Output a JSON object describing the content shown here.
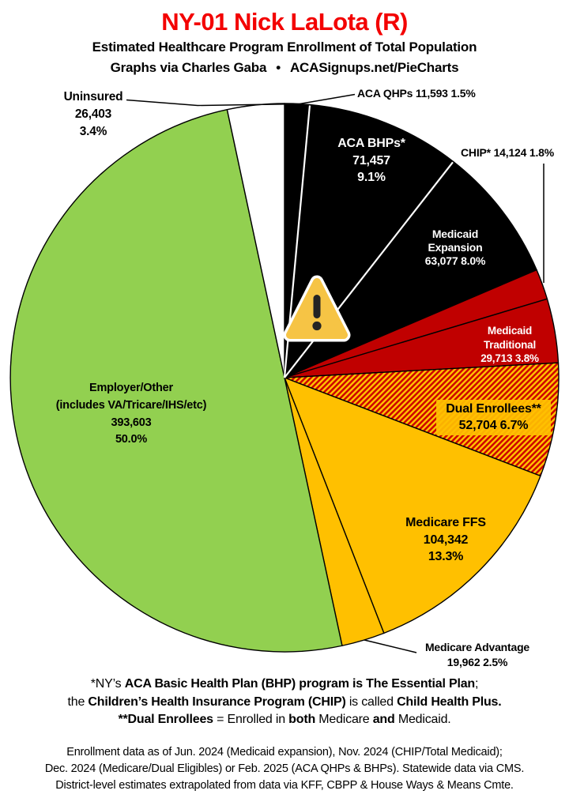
{
  "header": {
    "title": "NY-01 Nick LaLota (R)",
    "subtitle": "Estimated Healthcare Program Enrollment of Total Population",
    "byline_prefix": "Graphs via Charles Gaba",
    "byline_separator": "•",
    "byline_site": "ACASignups.net/PieCharts"
  },
  "colors": {
    "title_red": "#F30000",
    "black_slice": "#000000",
    "red_slice": "#C00000",
    "gold_slice": "#FFC000",
    "green_slice": "#92D050",
    "white_slice": "#FFFFFF",
    "separator_white": "#FFFFFF",
    "outline_black": "#000000"
  },
  "warning_icon": {
    "name": "warning-triangle-icon",
    "fill": "#F6C445",
    "border": "#FFFFFF",
    "mark": "#242424"
  },
  "chart_data": {
    "type": "pie",
    "title": "NY-01 Nick LaLota (R)",
    "subtitle": "Estimated Healthcare Program Enrollment of Total Population",
    "total": 786978,
    "start_angle_deg": 0,
    "direction": "clockwise",
    "legend_position": "labels-on-and-around-pie",
    "hatch": {
      "bg": "#CE0000",
      "stripe": "#FFC000"
    },
    "slices": [
      {
        "id": "aca_qhps",
        "name": "ACA QHPs",
        "value": 11593,
        "pct": 1.5,
        "color": "#000000",
        "label_placement": "outside",
        "label_lines": [
          "ACA QHPs 11,593 1.5%"
        ]
      },
      {
        "id": "aca_bhps",
        "name": "ACA BHPs*",
        "value": 71457,
        "pct": 9.1,
        "color": "#000000",
        "label_placement": "inside",
        "label_lines": [
          "ACA BHPs*",
          "71,457",
          "9.1%"
        ]
      },
      {
        "id": "medicaid_expansion",
        "name": "Medicaid Expansion",
        "value": 63077,
        "pct": 8.0,
        "color": "#000000",
        "label_placement": "inside",
        "label_lines": [
          "Medicaid",
          "Expansion",
          "63,077 8.0%"
        ]
      },
      {
        "id": "chip",
        "name": "CHIP*",
        "value": 14124,
        "pct": 1.8,
        "color": "#C00000",
        "label_placement": "outside",
        "label_lines": [
          "CHIP* 14,124 1.8%"
        ]
      },
      {
        "id": "medicaid_traditional",
        "name": "Medicaid Traditional",
        "value": 29713,
        "pct": 3.8,
        "color": "#C00000",
        "label_placement": "inside",
        "label_lines": [
          "Medicaid",
          "Traditional",
          "29,713 3.8%"
        ]
      },
      {
        "id": "dual",
        "name": "Dual Enrollees**",
        "value": 52704,
        "pct": 6.7,
        "color": "hatch",
        "label_placement": "inside",
        "label_bg": "rgba(255,192,0,0.92)",
        "label_lines": [
          "Dual Enrollees**",
          "52,704 6.7%"
        ]
      },
      {
        "id": "medicare_ffs",
        "name": "Medicare FFS",
        "value": 104342,
        "pct": 13.3,
        "color": "#FFC000",
        "label_placement": "inside",
        "label_lines": [
          "Medicare FFS",
          "104,342",
          "13.3%"
        ]
      },
      {
        "id": "medicare_advantage",
        "name": "Medicare Advantage",
        "value": 19962,
        "pct": 2.5,
        "color": "#FFC000",
        "label_placement": "outside",
        "label_lines": [
          "Medicare Advantage",
          "19,962 2.5%"
        ]
      },
      {
        "id": "employer",
        "name": "Employer/Other",
        "value": 393603,
        "pct": 50.0,
        "color": "#92D050",
        "label_placement": "inside",
        "label_lines": [
          "Employer/Other",
          "(includes VA/Tricare/IHS/etc)",
          "393,603",
          "50.0%"
        ]
      },
      {
        "id": "uninsured",
        "name": "Uninsured",
        "value": 26403,
        "pct": 3.4,
        "color": "#FFFFFF",
        "label_placement": "outside",
        "label_lines": [
          "Uninsured",
          "26,403",
          "3.4%"
        ]
      }
    ]
  },
  "footnotes": [
    [
      {
        "t": "*NY’s ",
        "b": false
      },
      {
        "t": "ACA Basic Health Plan (BHP) program is The Essential Plan",
        "b": true
      },
      {
        "t": ";",
        "b": false
      }
    ],
    [
      {
        "t": "the ",
        "b": false
      },
      {
        "t": "Children’s Health Insurance Program (CHIP)",
        "b": true
      },
      {
        "t": " is called ",
        "b": false
      },
      {
        "t": "Child Health Plus.",
        "b": true
      }
    ],
    [
      {
        "t": "**Dual Enrollees",
        "b": true
      },
      {
        "t": " = Enrolled in ",
        "b": false
      },
      {
        "t": "both",
        "b": true
      },
      {
        "t": " Medicare ",
        "b": false
      },
      {
        "t": "and",
        "b": true
      },
      {
        "t": " Medicaid.",
        "b": false
      }
    ]
  ],
  "source_lines": [
    "Enrollment data as of Jun. 2024 (Medicaid expansion), Nov. 2024 (CHIP/Total Medicaid);",
    "Dec. 2024 (Medicare/Dual Eligibles) or Feb. 2025 (ACA QHPs & BHPs). Statewide data via CMS.",
    "District-level estimates extrapolated from data via KFF, CBPP & House Ways & Means Cmte."
  ]
}
